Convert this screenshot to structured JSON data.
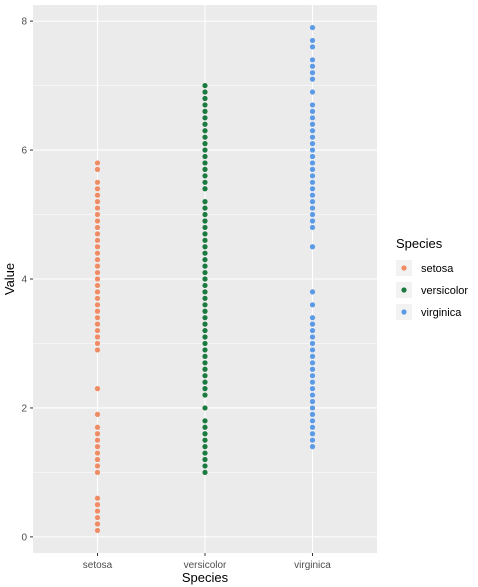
{
  "chart_data": {
    "type": "scatter",
    "xlabel": "Species",
    "ylabel": "Value",
    "categories": [
      "setosa",
      "versicolor",
      "virginica"
    ],
    "yticks": [
      0,
      2,
      4,
      6,
      8
    ],
    "ylim": [
      -0.25,
      8.25
    ],
    "grid": true,
    "legend": {
      "title": "Species",
      "position": "right"
    },
    "background": "#ebebeb",
    "series": [
      {
        "name": "setosa",
        "color": "#f08c65",
        "x": "setosa",
        "values": [
          0.1,
          0.2,
          0.3,
          0.4,
          0.5,
          0.6,
          1.0,
          1.1,
          1.2,
          1.3,
          1.4,
          1.5,
          1.6,
          1.7,
          1.9,
          2.3,
          2.9,
          3.0,
          3.1,
          3.2,
          3.3,
          3.4,
          3.5,
          3.6,
          3.7,
          3.8,
          3.9,
          4.0,
          4.1,
          4.2,
          4.3,
          4.4,
          4.5,
          4.6,
          4.7,
          4.8,
          4.9,
          5.0,
          5.1,
          5.2,
          5.3,
          5.4,
          5.5,
          5.7,
          5.8
        ]
      },
      {
        "name": "versicolor",
        "color": "#1a7a3f",
        "x": "versicolor",
        "values": [
          1.0,
          1.1,
          1.2,
          1.3,
          1.4,
          1.5,
          1.6,
          1.7,
          1.8,
          2.0,
          2.2,
          2.3,
          2.4,
          2.5,
          2.6,
          2.7,
          2.8,
          2.9,
          3.0,
          3.1,
          3.2,
          3.3,
          3.4,
          3.5,
          3.6,
          3.7,
          3.8,
          3.9,
          4.0,
          4.1,
          4.2,
          4.3,
          4.4,
          4.5,
          4.6,
          4.7,
          4.8,
          4.9,
          5.0,
          5.1,
          5.2,
          5.4,
          5.5,
          5.6,
          5.7,
          5.8,
          5.9,
          6.0,
          6.1,
          6.2,
          6.3,
          6.4,
          6.5,
          6.6,
          6.7,
          6.8,
          6.9,
          7.0
        ]
      },
      {
        "name": "virginica",
        "color": "#5b9ae6",
        "x": "virginica",
        "values": [
          1.4,
          1.5,
          1.6,
          1.7,
          1.8,
          1.9,
          2.0,
          2.1,
          2.2,
          2.3,
          2.4,
          2.5,
          2.6,
          2.7,
          2.8,
          2.9,
          3.0,
          3.1,
          3.2,
          3.3,
          3.4,
          3.6,
          3.8,
          4.5,
          4.8,
          4.9,
          5.0,
          5.1,
          5.2,
          5.3,
          5.4,
          5.5,
          5.6,
          5.7,
          5.8,
          5.9,
          6.0,
          6.1,
          6.2,
          6.3,
          6.4,
          6.5,
          6.6,
          6.7,
          6.9,
          7.1,
          7.2,
          7.3,
          7.4,
          7.6,
          7.7,
          7.9
        ]
      }
    ]
  }
}
